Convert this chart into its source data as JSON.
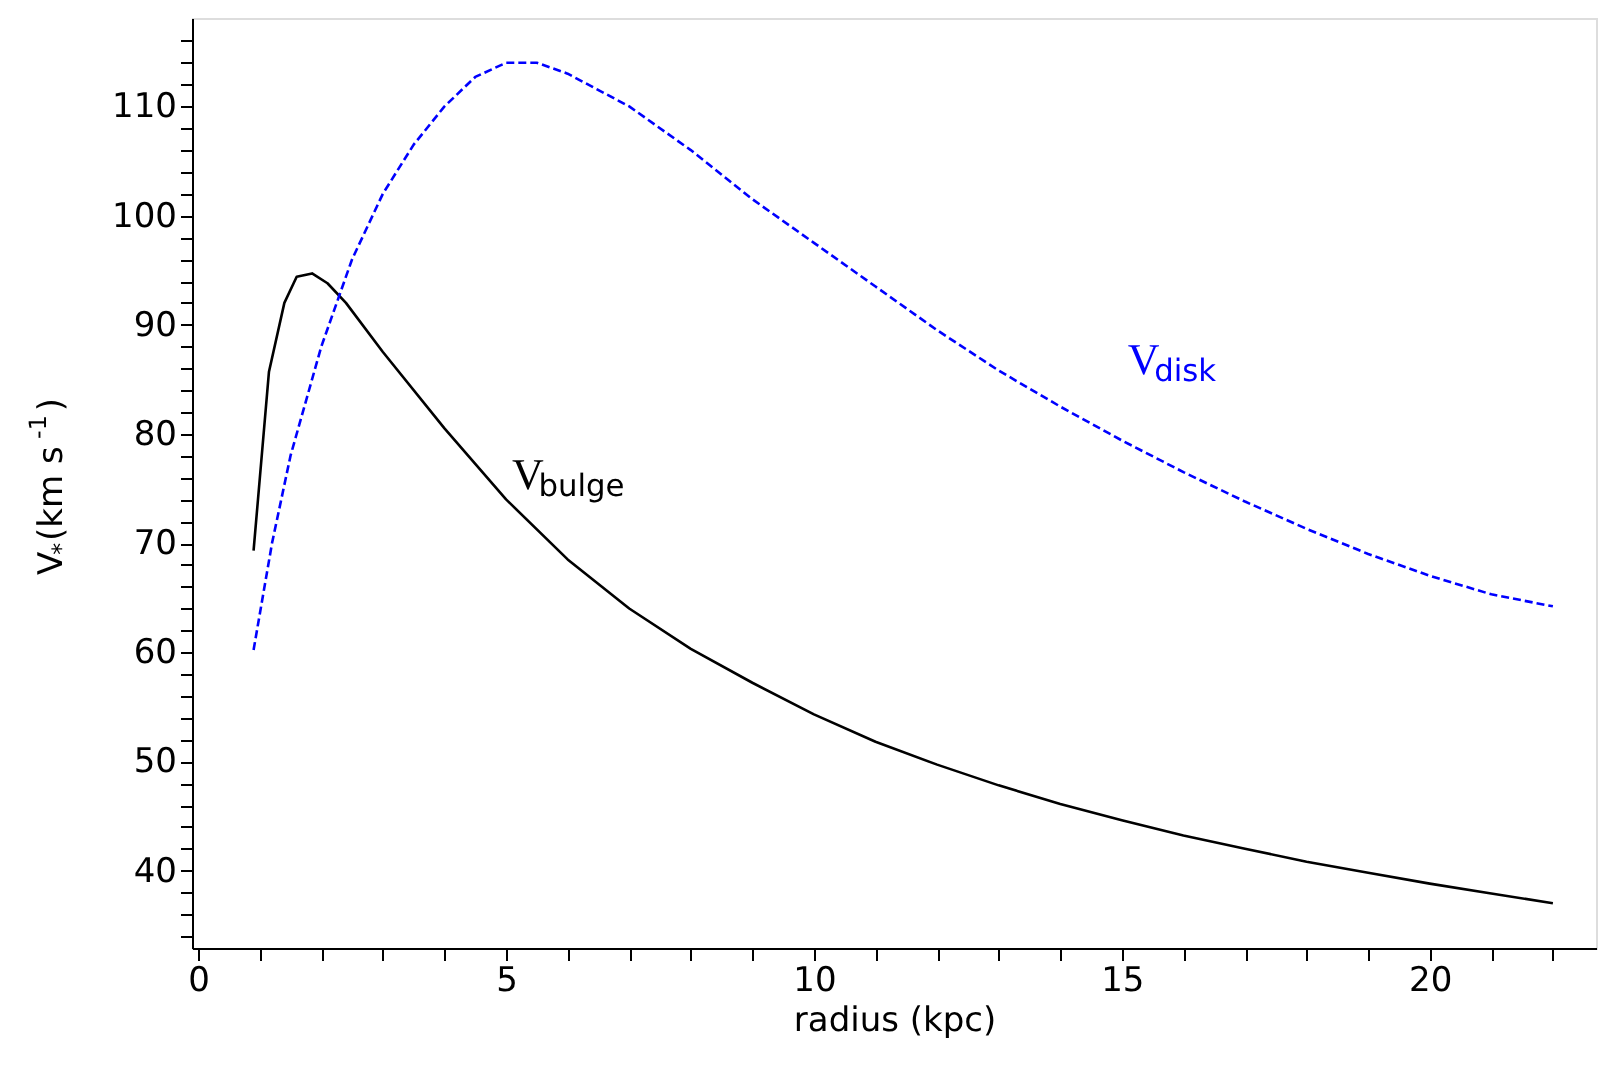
{
  "chart_data": {
    "type": "line",
    "xlabel": "radius (kpc)",
    "ylabel": "V$_{*}$(km s$^{-1}$)",
    "xlim": [
      -0.1,
      22.7
    ],
    "ylim": [
      32.9,
      118.1
    ],
    "xticks": [
      0,
      {
        "value": 1,
        "label": null
      },
      {
        "value": 2,
        "label": null
      },
      {
        "value": 3,
        "label": null
      },
      {
        "value": 4,
        "label": null
      },
      5,
      {
        "value": 6,
        "label": null
      },
      {
        "value": 7,
        "label": null
      },
      {
        "value": 8,
        "label": null
      },
      {
        "value": 9,
        "label": null
      },
      10,
      {
        "value": 11,
        "label": null
      },
      {
        "value": 12,
        "label": null
      },
      {
        "value": 13,
        "label": null
      },
      {
        "value": 14,
        "label": null
      },
      15,
      {
        "value": 16,
        "label": null
      },
      {
        "value": 17,
        "label": null
      },
      {
        "value": 18,
        "label": null
      },
      {
        "value": 19,
        "label": null
      },
      20,
      {
        "value": 21,
        "label": null
      },
      {
        "value": 22,
        "label": null
      }
    ],
    "yticks": [
      {
        "value": 34,
        "label": null
      },
      {
        "value": 36,
        "label": null
      },
      {
        "value": 38,
        "label": null
      },
      40,
      {
        "value": 42,
        "label": null
      },
      {
        "value": 44,
        "label": null
      },
      {
        "value": 46,
        "label": null
      },
      {
        "value": 48,
        "label": null
      },
      50,
      {
        "value": 52,
        "label": null
      },
      {
        "value": 54,
        "label": null
      },
      {
        "value": 56,
        "label": null
      },
      {
        "value": 58,
        "label": null
      },
      60,
      {
        "value": 62,
        "label": null
      },
      {
        "value": 64,
        "label": null
      },
      {
        "value": 66,
        "label": null
      },
      {
        "value": 68,
        "label": null
      },
      70,
      {
        "value": 72,
        "label": null
      },
      {
        "value": 74,
        "label": null
      },
      {
        "value": 76,
        "label": null
      },
      {
        "value": 78,
        "label": null
      },
      80,
      {
        "value": 82,
        "label": null
      },
      {
        "value": 84,
        "label": null
      },
      {
        "value": 86,
        "label": null
      },
      {
        "value": 88,
        "label": null
      },
      90,
      {
        "value": 92,
        "label": null
      },
      {
        "value": 94,
        "label": null
      },
      {
        "value": 96,
        "label": null
      },
      {
        "value": 98,
        "label": null
      },
      100,
      {
        "value": 102,
        "label": null
      },
      {
        "value": 104,
        "label": null
      },
      {
        "value": 106,
        "label": null
      },
      {
        "value": 108,
        "label": null
      },
      110,
      {
        "value": 112,
        "label": null
      },
      {
        "value": 114,
        "label": null
      },
      {
        "value": 116,
        "label": null
      }
    ],
    "grid": false,
    "marker": "none",
    "series": [
      {
        "color": "#000000",
        "line_style": "solid",
        "x": [
          0.9,
          1.15,
          1.4,
          1.6,
          1.85,
          2.1,
          2.4,
          3,
          4,
          5,
          6,
          7,
          8,
          9,
          10,
          11,
          12,
          13,
          14,
          15,
          16,
          17,
          18,
          19,
          20,
          21,
          22
        ],
        "values": [
          69.3,
          85.7,
          92,
          94.4,
          94.7,
          93.8,
          92,
          87.5,
          80.5,
          74,
          68.5,
          64,
          60.3,
          57.2,
          54.3,
          51.8,
          49.7,
          47.8,
          46.1,
          44.6,
          43.2,
          42,
          40.8,
          39.8,
          38.8,
          37.9,
          37
        ]
      },
      {
        "color": "#0000ff",
        "line_style": "dashed",
        "x": [
          0.9,
          1.2,
          1.5,
          2,
          2.5,
          3,
          3.5,
          4,
          4.5,
          5,
          5.5,
          6,
          7,
          8,
          9,
          10,
          11,
          12,
          13,
          14,
          15,
          16,
          17,
          18,
          19,
          20,
          21,
          22
        ],
        "values": [
          60.2,
          70,
          78,
          88,
          96,
          102,
          106.5,
          110,
          112.7,
          114,
          114,
          113,
          110,
          106,
          101.5,
          97.5,
          93.5,
          89.5,
          85.8,
          82.5,
          79.4,
          76.5,
          73.8,
          71.3,
          69,
          67,
          65.3,
          64.2
        ]
      }
    ],
    "annotations": [
      {
        "text": "V$_{bulge}$",
        "x": 5,
        "y": 74
      },
      {
        "text": "V$_{disk}$",
        "x": 15,
        "y": 79.4
      }
    ]
  }
}
